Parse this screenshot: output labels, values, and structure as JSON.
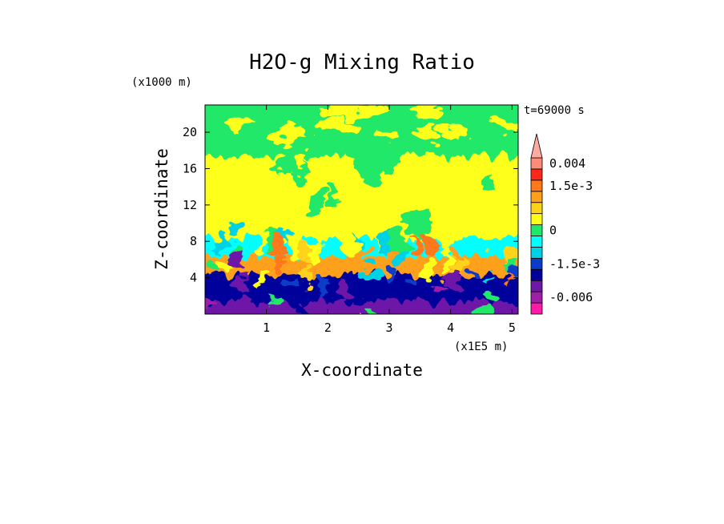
{
  "chart_data": {
    "type": "heatmap",
    "title": "H2O-g Mixing Ratio",
    "xlabel": "X-coordinate",
    "ylabel": "Z-coordinate",
    "x_unit": "(x1E5 m)",
    "y_unit": "(x1000 m)",
    "time_label": "t=69000 s",
    "xlim": [
      0,
      5.1
    ],
    "ylim": [
      0,
      23
    ],
    "x_ticks": [
      1,
      2,
      3,
      4,
      5
    ],
    "y_ticks": [
      4,
      8,
      12,
      16,
      20
    ],
    "colorbar": {
      "ticks": [
        {
          "label": "0.004",
          "value": 0.004
        },
        {
          "label": "1.5e-3",
          "value": 0.0015
        },
        {
          "label": "0",
          "value": 0
        },
        {
          "label": "-1.5e-3",
          "value": -0.0015
        },
        {
          "label": "-0.006",
          "value": -0.006
        }
      ],
      "levels": [
        {
          "value": -0.008,
          "color": "#ff1aa8"
        },
        {
          "value": -0.005,
          "color": "#a01ea8"
        },
        {
          "value": -0.003,
          "color": "#6e18a8"
        },
        {
          "value": -0.002,
          "color": "#00009a"
        },
        {
          "value": -0.0015,
          "color": "#0a3cc8"
        },
        {
          "value": -0.0007,
          "color": "#00d2e6"
        },
        {
          "value": -0.0002,
          "color": "#00ffff"
        },
        {
          "value": 0.0001,
          "color": "#22e86a"
        },
        {
          "value": 0.0004,
          "color": "#ffff1a"
        },
        {
          "value": 0.0008,
          "color": "#ffd21a"
        },
        {
          "value": 0.0012,
          "color": "#ffa01a"
        },
        {
          "value": 0.0016,
          "color": "#ff781a"
        },
        {
          "value": 0.002,
          "color": "#ff281a"
        },
        {
          "value": 0.004,
          "color": "#ff8c78"
        },
        {
          "value": 0.005,
          "color": "#ffaaa0"
        }
      ]
    },
    "layers": [
      {
        "z_range": [
          0,
          2
        ],
        "dominant": "#6e18a8"
      },
      {
        "z_range": [
          2,
          5
        ],
        "dominant": "#00009a"
      },
      {
        "z_range": [
          5,
          7
        ],
        "dominant": "#ffa01a"
      },
      {
        "z_range": [
          7,
          9
        ],
        "dominant": "#00ffff"
      },
      {
        "z_range": [
          9,
          18
        ],
        "dominant": "#ffff1a"
      },
      {
        "z_range": [
          18,
          23
        ],
        "dominant": "#22e86a"
      }
    ]
  }
}
